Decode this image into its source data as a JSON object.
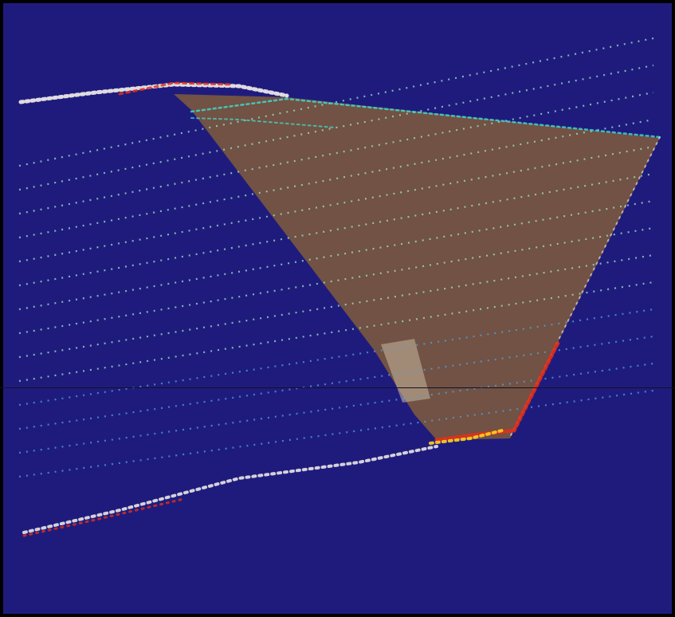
{
  "scene": {
    "subject": "point-cloud-scan",
    "colors": {
      "background": "#1f1b7d",
      "frame": "#000000",
      "plane_fill": "#7d5a3c",
      "plane_edge_glow": "#3fe0d0",
      "scan_line": "#4fa3e6",
      "scan_line_on_plane": "#9fe8c8",
      "edge_hot_red": "#e0301c",
      "edge_hot_yellow": "#ffd21f",
      "edge_white": "#f4f1ea",
      "inset_patch": "#c9b8a0",
      "divider": "#121224"
    }
  }
}
